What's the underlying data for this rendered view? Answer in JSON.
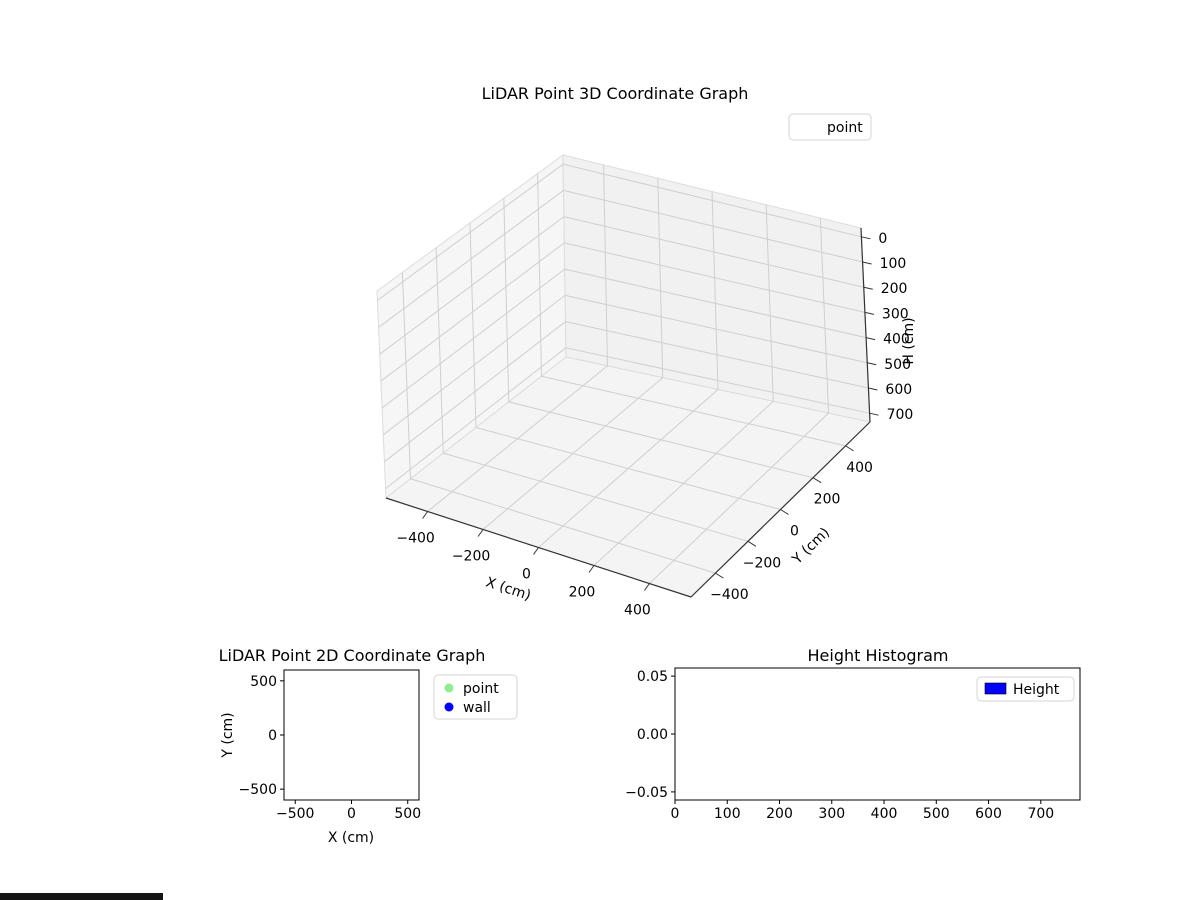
{
  "figure": {
    "background": "#ffffff"
  },
  "chart_data": [
    {
      "type": "scatter3d",
      "title": "LiDAR Point 3D Coordinate Graph",
      "xlabel": "X (cm)",
      "ylabel": "Y (cm)",
      "zlabel": "H (cm)",
      "xlim": [
        -550,
        550
      ],
      "ylim": [
        -550,
        550
      ],
      "zlim": [
        -35,
        735
      ],
      "z_axis_inverted": true,
      "x_tick_values": [
        -400,
        -200,
        0,
        200,
        400
      ],
      "x_ticks": [
        "−400",
        "−200",
        "0",
        "200",
        "400"
      ],
      "y_tick_values": [
        -400,
        -200,
        0,
        200,
        400
      ],
      "y_ticks": [
        "−400",
        "−200",
        "0",
        "200",
        "400"
      ],
      "z_tick_values": [
        0,
        100,
        200,
        300,
        400,
        500,
        600,
        700
      ],
      "z_ticks": [
        "0",
        "100",
        "200",
        "300",
        "400",
        "500",
        "600",
        "700"
      ],
      "grid": true,
      "legend_position": "upper right, outside top",
      "legend": [
        {
          "label": "point",
          "marker": "none"
        }
      ],
      "series": [
        {
          "name": "point",
          "points": []
        }
      ]
    },
    {
      "type": "scatter",
      "title": "LiDAR Point 2D Coordinate Graph",
      "xlabel": "X (cm)",
      "ylabel": "Y (cm)",
      "xlim": [
        -600,
        600
      ],
      "ylim": [
        -600,
        600
      ],
      "x_tick_values": [
        -500,
        0,
        500
      ],
      "x_ticks": [
        "−500",
        "0",
        "500"
      ],
      "y_tick_values": [
        -500,
        0,
        500
      ],
      "y_ticks": [
        "−500",
        "0",
        "500"
      ],
      "grid": false,
      "legend_position": "outside right top",
      "legend": [
        {
          "label": "point",
          "marker": "circle",
          "color": "#90ee90"
        },
        {
          "label": "wall",
          "marker": "circle",
          "color": "#0000ff"
        }
      ],
      "series": [
        {
          "name": "point",
          "points": []
        },
        {
          "name": "wall",
          "points": []
        }
      ]
    },
    {
      "type": "bar",
      "title": "Height Histogram",
      "xlabel": "",
      "ylabel": "",
      "xlim": [
        0,
        775
      ],
      "ylim": [
        -0.057,
        0.057
      ],
      "x_tick_values": [
        0,
        100,
        200,
        300,
        400,
        500,
        600,
        700
      ],
      "x_ticks": [
        "0",
        "100",
        "200",
        "300",
        "400",
        "500",
        "600",
        "700"
      ],
      "y_tick_values": [
        -0.05,
        0,
        0.05
      ],
      "y_ticks": [
        "−0.05",
        "0.00",
        "0.05"
      ],
      "grid": false,
      "legend_position": "upper right inside",
      "legend": [
        {
          "label": "Height",
          "marker": "rect",
          "color": "#0000ff"
        }
      ],
      "values": []
    }
  ]
}
